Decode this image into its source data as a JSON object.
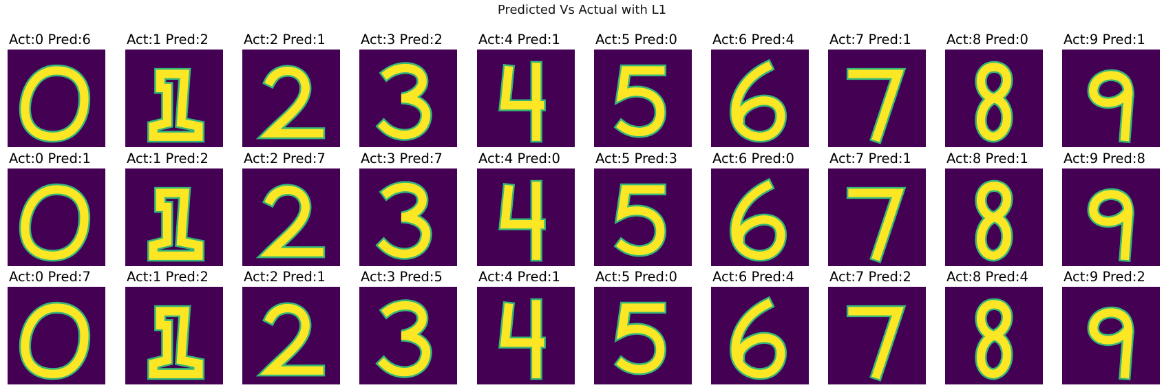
{
  "figure": {
    "title": "Predicted Vs Actual with L1"
  },
  "chart_data": {
    "type": "image-grid",
    "title": "Predicted Vs Actual with L1",
    "colormap": {
      "background": "#440154",
      "mid_low": "#31688e",
      "mid": "#35b779",
      "foreground": "#fde725"
    },
    "rows": 3,
    "cols": 10,
    "panels": [
      {
        "label": "Act:0  Pred:6",
        "actual": 0,
        "predicted": 6
      },
      {
        "label": "Act:1  Pred:2",
        "actual": 1,
        "predicted": 2
      },
      {
        "label": "Act:2  Pred:1",
        "actual": 2,
        "predicted": 1
      },
      {
        "label": "Act:3  Pred:2",
        "actual": 3,
        "predicted": 2
      },
      {
        "label": "Act:4  Pred:1",
        "actual": 4,
        "predicted": 1
      },
      {
        "label": "Act:5  Pred:0",
        "actual": 5,
        "predicted": 0
      },
      {
        "label": "Act:6  Pred:4",
        "actual": 6,
        "predicted": 4
      },
      {
        "label": "Act:7  Pred:1",
        "actual": 7,
        "predicted": 1
      },
      {
        "label": "Act:8  Pred:0",
        "actual": 8,
        "predicted": 0
      },
      {
        "label": "Act:9  Pred:1",
        "actual": 9,
        "predicted": 1
      },
      {
        "label": "Act:0  Pred:1",
        "actual": 0,
        "predicted": 1
      },
      {
        "label": "Act:1  Pred:2",
        "actual": 1,
        "predicted": 2
      },
      {
        "label": "Act:2  Pred:7",
        "actual": 2,
        "predicted": 7
      },
      {
        "label": "Act:3  Pred:7",
        "actual": 3,
        "predicted": 7
      },
      {
        "label": "Act:4  Pred:0",
        "actual": 4,
        "predicted": 0
      },
      {
        "label": "Act:5  Pred:3",
        "actual": 5,
        "predicted": 3
      },
      {
        "label": "Act:6  Pred:0",
        "actual": 6,
        "predicted": 0
      },
      {
        "label": "Act:7  Pred:1",
        "actual": 7,
        "predicted": 1
      },
      {
        "label": "Act:8  Pred:1",
        "actual": 8,
        "predicted": 1
      },
      {
        "label": "Act:9  Pred:8",
        "actual": 9,
        "predicted": 8
      },
      {
        "label": "Act:0  Pred:7",
        "actual": 0,
        "predicted": 7
      },
      {
        "label": "Act:1  Pred:2",
        "actual": 1,
        "predicted": 2
      },
      {
        "label": "Act:2  Pred:1",
        "actual": 2,
        "predicted": 1
      },
      {
        "label": "Act:3  Pred:5",
        "actual": 3,
        "predicted": 5
      },
      {
        "label": "Act:4  Pred:1",
        "actual": 4,
        "predicted": 1
      },
      {
        "label": "Act:5  Pred:0",
        "actual": 5,
        "predicted": 0
      },
      {
        "label": "Act:6  Pred:4",
        "actual": 6,
        "predicted": 4
      },
      {
        "label": "Act:7  Pred:2",
        "actual": 7,
        "predicted": 2
      },
      {
        "label": "Act:8  Pred:4",
        "actual": 8,
        "predicted": 4
      },
      {
        "label": "Act:9  Pred:2",
        "actual": 9,
        "predicted": 2
      }
    ]
  }
}
